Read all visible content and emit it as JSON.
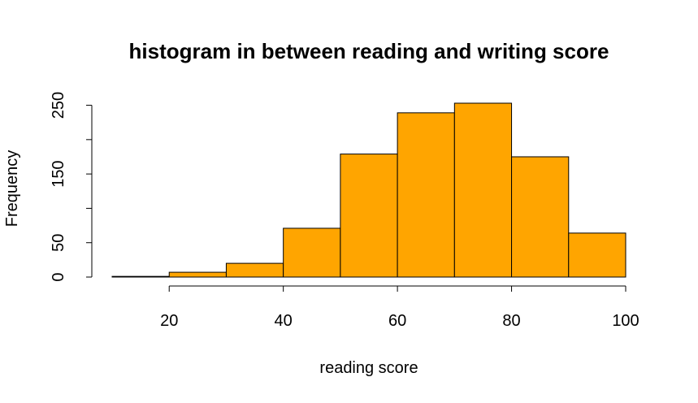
{
  "chart_data": {
    "type": "bar",
    "subtype": "histogram",
    "title": "histogram in between reading and writing score",
    "xlabel": "reading score",
    "ylabel": "Frequency",
    "bins": [
      {
        "from": 10,
        "to": 20,
        "count": 1
      },
      {
        "from": 20,
        "to": 30,
        "count": 7
      },
      {
        "from": 30,
        "to": 40,
        "count": 20
      },
      {
        "from": 40,
        "to": 50,
        "count": 71
      },
      {
        "from": 50,
        "to": 60,
        "count": 179
      },
      {
        "from": 60,
        "to": 70,
        "count": 239
      },
      {
        "from": 70,
        "to": 80,
        "count": 253
      },
      {
        "from": 80,
        "to": 90,
        "count": 175
      },
      {
        "from": 90,
        "to": 100,
        "count": 64
      }
    ],
    "xlim": [
      10,
      100
    ],
    "ylim": [
      0,
      253
    ],
    "x_ticks": [
      20,
      40,
      60,
      80,
      100
    ],
    "y_ticks": [
      0,
      50,
      100,
      150,
      200,
      250
    ],
    "y_tick_labels": [
      "0",
      "50",
      "",
      "150",
      "",
      "250"
    ],
    "bar_color": "#FFA500",
    "border_color": "#000000",
    "grid": false,
    "legend": "none"
  }
}
